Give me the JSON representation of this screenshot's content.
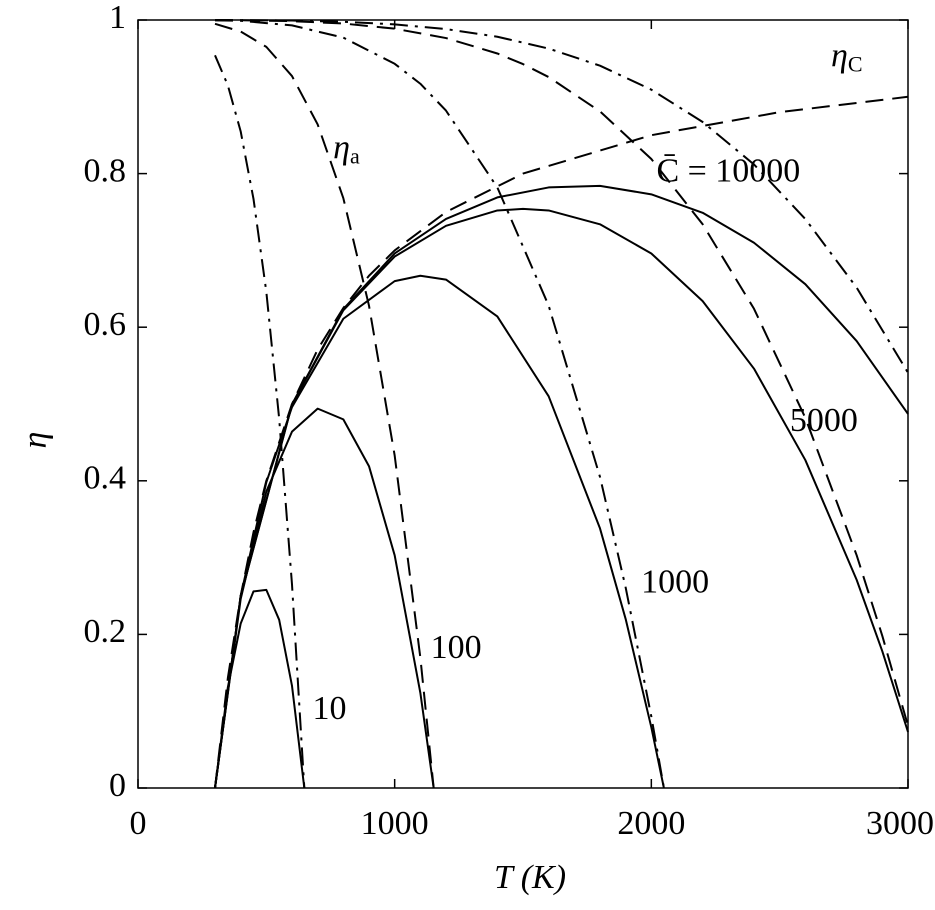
{
  "chart_data": {
    "type": "line",
    "x_label": "T (K)",
    "y_label": "η",
    "xlim": [
      0,
      3000
    ],
    "xticks": [
      0,
      1000,
      2000,
      3000
    ],
    "ylim": [
      0,
      1
    ],
    "yticks": [
      0,
      0.2,
      0.4,
      0.6,
      0.8,
      1
    ],
    "grid": false,
    "series": [
      {
        "color": "#000000",
        "dash": "solid",
        "x": [
          300,
          350,
          400,
          450,
          500,
          550,
          600,
          648
        ],
        "values": [
          0,
          0.131,
          0.214,
          0.256,
          0.258,
          0.219,
          0.133,
          0
        ]
      },
      {
        "color": "#000000",
        "dash": "solid",
        "x": [
          300,
          400,
          500,
          600,
          700,
          800,
          900,
          1000,
          1100,
          1152
        ],
        "values": [
          0,
          0.246,
          0.386,
          0.464,
          0.494,
          0.48,
          0.419,
          0.303,
          0.124,
          0
        ]
      },
      {
        "color": "#000000",
        "dash": "solid",
        "x": [
          300,
          400,
          500,
          600,
          800,
          1000,
          1100,
          1200,
          1400,
          1600,
          1800,
          1900,
          2000,
          2049
        ],
        "values": [
          0,
          0.25,
          0.398,
          0.496,
          0.611,
          0.66,
          0.667,
          0.662,
          0.614,
          0.51,
          0.338,
          0.22,
          0.079,
          0
        ]
      },
      {
        "color": "#000000",
        "dash": "solid",
        "x": [
          300,
          400,
          600,
          800,
          1000,
          1200,
          1400,
          1500,
          1600,
          1800,
          2000,
          2200,
          2400,
          2600,
          2800,
          2900,
          3000
        ],
        "values": [
          0,
          0.25,
          0.499,
          0.622,
          0.692,
          0.732,
          0.752,
          0.754,
          0.752,
          0.734,
          0.696,
          0.634,
          0.546,
          0.427,
          0.271,
          0.178,
          0.073
        ]
      },
      {
        "color": "#000000",
        "dash": "solid",
        "x": [
          300,
          400,
          600,
          800,
          1000,
          1200,
          1400,
          1600,
          1800,
          2000,
          2200,
          2400,
          2600,
          2800,
          3000
        ],
        "values": [
          0,
          0.25,
          0.4996,
          0.6236,
          0.696,
          0.741,
          0.769,
          0.782,
          0.784,
          0.773,
          0.749,
          0.71,
          0.656,
          0.582,
          0.487
        ]
      },
      {
        "color": "#000000",
        "dash": "dashdot",
        "x": [
          300,
          350,
          400,
          450,
          500,
          550,
          600,
          648
        ],
        "values": [
          0.954,
          0.915,
          0.855,
          0.767,
          0.646,
          0.481,
          0.265,
          0
        ]
      },
      {
        "color": "#000000",
        "dash": "dashed",
        "x": [
          300,
          400,
          500,
          600,
          700,
          800,
          900,
          1000,
          1100,
          1152
        ],
        "values": [
          0.995,
          0.985,
          0.965,
          0.927,
          0.864,
          0.768,
          0.628,
          0.433,
          0.17,
          0
        ]
      },
      {
        "color": "#000000",
        "dash": "dashdot",
        "x": [
          300,
          400,
          500,
          600,
          800,
          1000,
          1100,
          1200,
          1400,
          1600,
          1800,
          1900,
          2000,
          2049
        ],
        "values": [
          0.9995,
          0.999,
          0.996,
          0.993,
          0.977,
          0.943,
          0.917,
          0.882,
          0.782,
          0.628,
          0.405,
          0.261,
          0.093,
          0
        ]
      },
      {
        "color": "#000000",
        "dash": "dashed",
        "x": [
          300,
          400,
          600,
          800,
          1000,
          1200,
          1400,
          1500,
          1600,
          1800,
          2000,
          2200,
          2400,
          2600,
          2800,
          2900,
          3000
        ],
        "values": [
          0.9999,
          0.9997,
          0.9985,
          0.9954,
          0.9887,
          0.9765,
          0.9564,
          0.9426,
          0.9257,
          0.881,
          0.819,
          0.734,
          0.624,
          0.482,
          0.303,
          0.198,
          0.081
        ]
      },
      {
        "color": "#000000",
        "dash": "dashdot",
        "x": [
          300,
          400,
          600,
          800,
          1000,
          1200,
          1400,
          1600,
          1800,
          2000,
          2200,
          2400,
          2600,
          2800,
          3000
        ],
        "values": [
          1,
          0.99985,
          0.99927,
          0.9977,
          0.9943,
          0.9882,
          0.9782,
          0.9628,
          0.9405,
          0.9093,
          0.8672,
          0.8119,
          0.7409,
          0.6515,
          0.5407
        ]
      },
      {
        "color": "#000000",
        "dash": "dashed",
        "x": [
          300,
          350,
          400,
          450,
          500,
          600,
          700,
          800,
          900,
          1000,
          1200,
          1500,
          2000,
          2500,
          3000
        ],
        "values": [
          0,
          0.143,
          0.25,
          0.333,
          0.4,
          0.5,
          0.571,
          0.625,
          0.667,
          0.7,
          0.75,
          0.8,
          0.85,
          0.88,
          0.9
        ]
      }
    ],
    "annotations": [
      {
        "text": "10"
      },
      {
        "text": "100"
      },
      {
        "text": "1000"
      },
      {
        "text": "5000"
      },
      {
        "text": "C̄ = 10000"
      },
      {
        "text": "η",
        "sub": "a"
      },
      {
        "text": "η",
        "sub": "C"
      }
    ]
  }
}
